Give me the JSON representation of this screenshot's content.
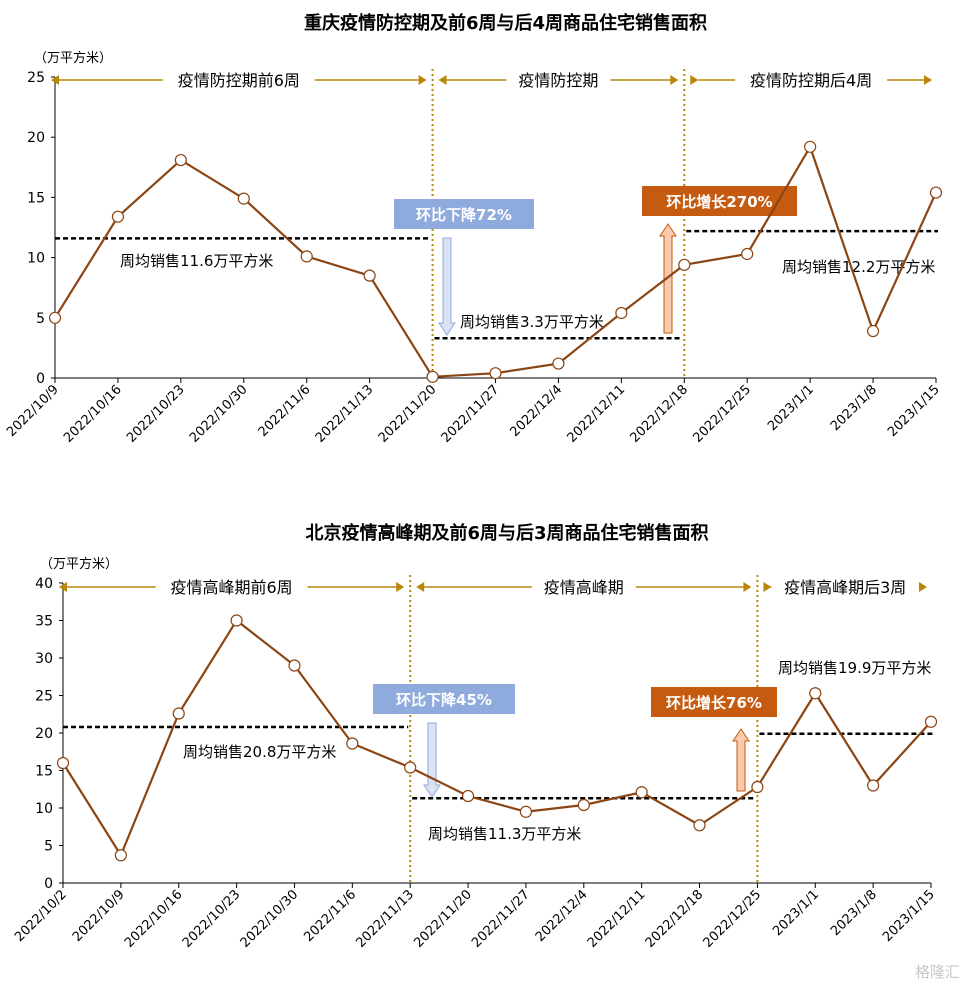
{
  "watermark": "格隆汇",
  "colors": {
    "line": "#8B4513",
    "marker_fill": "#ffffff",
    "period_arrow": "#B8860B",
    "divider": "#B8860B",
    "avg_line": "#000000",
    "down_box": "#8FAADC",
    "up_box": "#C55A11",
    "down_arrow_fill": "#DAE3F3",
    "down_arrow_stroke": "#8FAADC",
    "up_arrow_fill": "#F8CBAD",
    "up_arrow_stroke": "#C55A11"
  },
  "chart_data": [
    {
      "type": "line",
      "title": "重庆疫情防控期及前6周与后4周商品住宅销售面积",
      "unit_label": "（万平方米）",
      "ylim": [
        0,
        25
      ],
      "yticks": [
        0,
        5,
        10,
        15,
        20,
        25
      ],
      "categories": [
        "2022/10/9",
        "2022/10/16",
        "2022/10/23",
        "2022/10/30",
        "2022/11/6",
        "2022/11/13",
        "2022/11/20",
        "2022/11/27",
        "2022/12/4",
        "2022/12/11",
        "2022/12/18",
        "2022/12/25",
        "2023/1/1",
        "2023/1/8",
        "2023/1/15"
      ],
      "series": [
        {
          "values": [
            5.0,
            13.4,
            18.1,
            14.9,
            10.1,
            8.5,
            0.1,
            0.4,
            1.2,
            5.4,
            9.4,
            10.3,
            19.2,
            3.9,
            15.4
          ]
        }
      ],
      "periods": [
        {
          "label": "疫情防控期前6周",
          "from": 0,
          "to": 6
        },
        {
          "label": "疫情防控期",
          "from": 6,
          "to": 10
        },
        {
          "label": "疫情防控期后4周",
          "from": 10,
          "to": 14
        }
      ],
      "dividers": [
        6,
        10
      ],
      "averages": [
        {
          "value": 11.6,
          "from": 0,
          "to": 6,
          "label": "周均销售11.6万平方米"
        },
        {
          "value": 3.3,
          "from": 6,
          "to": 10,
          "label": "周均销售3.3万平方米"
        },
        {
          "value": 12.2,
          "from": 10,
          "to": 14,
          "label": "周均销售12.2万平方米"
        }
      ],
      "callouts": [
        {
          "label": "环比下降72%",
          "direction": "down"
        },
        {
          "label": "环比增长270%",
          "direction": "up"
        }
      ]
    },
    {
      "type": "line",
      "title": "北京疫情高峰期及前6周与后3周商品住宅销售面积",
      "unit_label": "（万平方米）",
      "ylim": [
        0,
        40
      ],
      "yticks": [
        0,
        5,
        10,
        15,
        20,
        25,
        30,
        35,
        40
      ],
      "categories": [
        "2022/10/2",
        "2022/10/9",
        "2022/10/16",
        "2022/10/23",
        "2022/10/30",
        "2022/11/6",
        "2022/11/13",
        "2022/11/20",
        "2022/11/27",
        "2022/12/4",
        "2022/12/11",
        "2022/12/18",
        "2022/12/25",
        "2023/1/1",
        "2023/1/8",
        "2023/1/15"
      ],
      "series": [
        {
          "values": [
            16.0,
            3.7,
            22.6,
            35.0,
            29.0,
            18.6,
            15.4,
            11.6,
            9.5,
            10.4,
            12.1,
            7.7,
            12.8,
            25.3,
            13.0,
            21.5
          ]
        }
      ],
      "periods": [
        {
          "label": "疫情高峰期前6周",
          "from": 0,
          "to": 6
        },
        {
          "label": "疫情高峰期",
          "from": 6,
          "to": 12
        },
        {
          "label": "疫情高峰期后3周",
          "from": 12,
          "to": 15
        }
      ],
      "dividers": [
        6,
        12
      ],
      "averages": [
        {
          "value": 20.8,
          "from": 0,
          "to": 6,
          "label": "周均销售20.8万平方米"
        },
        {
          "value": 11.3,
          "from": 6,
          "to": 12,
          "label": "周均销售11.3万平方米"
        },
        {
          "value": 19.9,
          "from": 12,
          "to": 15,
          "label": "周均销售19.9万平方米"
        }
      ],
      "callouts": [
        {
          "label": "环比下降45%",
          "direction": "down"
        },
        {
          "label": "环比增长76%",
          "direction": "up"
        }
      ]
    }
  ]
}
